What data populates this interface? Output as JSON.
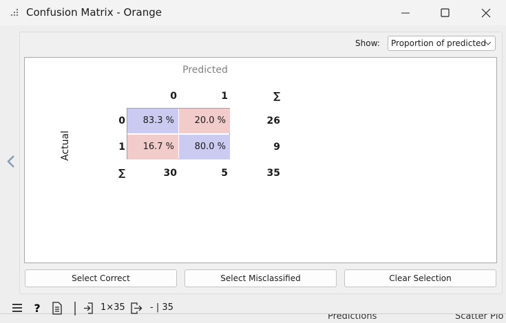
{
  "window": {
    "title": "Confusion Matrix - Orange"
  },
  "controls": {
    "show_label": "Show:",
    "show_value": "Proportion of predicted"
  },
  "matrix": {
    "predicted_label": "Predicted",
    "actual_label": "Actual",
    "column_headers": [
      "0",
      "1",
      "∑"
    ],
    "rows": [
      {
        "header": "0",
        "cells": [
          "83.3 %",
          "20.0 %"
        ],
        "total": "26"
      },
      {
        "header": "1",
        "cells": [
          "16.7 %",
          "80.0 %"
        ],
        "total": "9"
      }
    ],
    "totals": {
      "header": "∑",
      "values": [
        "30",
        "5"
      ],
      "grand": "35"
    }
  },
  "buttons": [
    "Select Correct",
    "Select Misclassified",
    "Clear Selection"
  ],
  "status": {
    "input": "1×35",
    "output": "- | 35"
  },
  "background": {
    "labels": [
      "Predictions",
      "Scatter Plo"
    ]
  }
}
